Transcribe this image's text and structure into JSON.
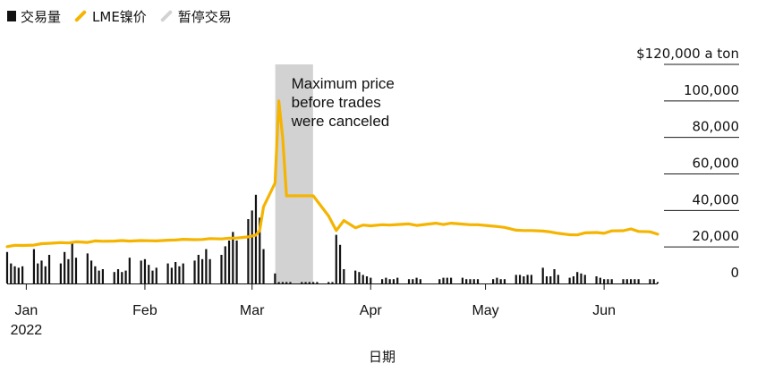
{
  "legend": {
    "volume": "交易量",
    "price": "LME镍价",
    "halt": "暂停交易"
  },
  "colors": {
    "price_line": "#f5b400",
    "volume_bars": "#111111",
    "halt_band": "#d2d2d2",
    "grid": "#1a1a1a"
  },
  "chart_data": {
    "type": "line",
    "x_range": [
      "2021-12-27",
      "2022-06-15"
    ],
    "y_range": [
      0,
      120000
    ],
    "y_ticks": [
      {
        "value": 120000,
        "label": "$120,000 a ton"
      },
      {
        "value": 100000,
        "label": "100,000"
      },
      {
        "value": 80000,
        "label": "80,000"
      },
      {
        "value": 60000,
        "label": "60,000"
      },
      {
        "value": 40000,
        "label": "40,000"
      },
      {
        "value": 20000,
        "label": "20,000"
      },
      {
        "value": 0,
        "label": "0"
      }
    ],
    "x_ticks": [
      {
        "date": "2022-01-01",
        "label": "Jan",
        "sublabel": "2022"
      },
      {
        "date": "2022-02-01",
        "label": "Feb",
        "sublabel": ""
      },
      {
        "date": "2022-03-01",
        "label": "Mar",
        "sublabel": ""
      },
      {
        "date": "2022-04-01",
        "label": "Apr",
        "sublabel": ""
      },
      {
        "date": "2022-05-01",
        "label": "May",
        "sublabel": ""
      },
      {
        "date": "2022-06-01",
        "label": "Jun",
        "sublabel": ""
      }
    ],
    "xlabel": "日期",
    "halt_period": [
      "2022-03-08",
      "2022-03-16"
    ],
    "annotation": {
      "text": [
        "Maximum price",
        "before trades",
        "were canceled"
      ],
      "date": "2022-03-08"
    },
    "series": [
      {
        "name": "LME镍价",
        "points": [
          [
            "2021-12-27",
            20200
          ],
          [
            "2021-12-29",
            20900
          ],
          [
            "2021-12-31",
            20800
          ],
          [
            "2022-01-03",
            21000
          ],
          [
            "2022-01-05",
            21800
          ],
          [
            "2022-01-07",
            22000
          ],
          [
            "2022-01-10",
            22400
          ],
          [
            "2022-01-12",
            22200
          ],
          [
            "2022-01-14",
            22800
          ],
          [
            "2022-01-17",
            22500
          ],
          [
            "2022-01-19",
            23300
          ],
          [
            "2022-01-21",
            23100
          ],
          [
            "2022-01-24",
            23200
          ],
          [
            "2022-01-26",
            23500
          ],
          [
            "2022-01-28",
            23200
          ],
          [
            "2022-01-31",
            23500
          ],
          [
            "2022-02-02",
            23400
          ],
          [
            "2022-02-04",
            23300
          ],
          [
            "2022-02-07",
            23700
          ],
          [
            "2022-02-09",
            23800
          ],
          [
            "2022-02-11",
            24200
          ],
          [
            "2022-02-14",
            24000
          ],
          [
            "2022-02-16",
            24100
          ],
          [
            "2022-02-18",
            24600
          ],
          [
            "2022-02-21",
            24400
          ],
          [
            "2022-02-23",
            24800
          ],
          [
            "2022-02-25",
            24900
          ],
          [
            "2022-02-28",
            25500
          ],
          [
            "2022-03-02",
            26500
          ],
          [
            "2022-03-03",
            29000
          ],
          [
            "2022-03-04",
            42000
          ],
          [
            "2022-03-07",
            55000
          ],
          [
            "2022-03-08",
            100000
          ],
          [
            "2022-03-09",
            80000
          ],
          [
            "2022-03-10",
            48000
          ],
          [
            "2022-03-16",
            48000
          ],
          [
            "2022-03-17",
            48000
          ],
          [
            "2022-03-21",
            37000
          ],
          [
            "2022-03-23",
            29000
          ],
          [
            "2022-03-25",
            34500
          ],
          [
            "2022-03-28",
            30500
          ],
          [
            "2022-03-30",
            32000
          ],
          [
            "2022-04-01",
            31600
          ],
          [
            "2022-04-04",
            32200
          ],
          [
            "2022-04-06",
            32000
          ],
          [
            "2022-04-08",
            32300
          ],
          [
            "2022-04-11",
            32600
          ],
          [
            "2022-04-13",
            31800
          ],
          [
            "2022-04-15",
            32300
          ],
          [
            "2022-04-18",
            33000
          ],
          [
            "2022-04-20",
            32300
          ],
          [
            "2022-04-22",
            33000
          ],
          [
            "2022-04-25",
            32500
          ],
          [
            "2022-04-27",
            32200
          ],
          [
            "2022-04-29",
            32200
          ],
          [
            "2022-05-02",
            31600
          ],
          [
            "2022-05-04",
            31200
          ],
          [
            "2022-05-06",
            30700
          ],
          [
            "2022-05-09",
            29200
          ],
          [
            "2022-05-11",
            29000
          ],
          [
            "2022-05-13",
            29000
          ],
          [
            "2022-05-16",
            28700
          ],
          [
            "2022-05-18",
            28200
          ],
          [
            "2022-05-20",
            27500
          ],
          [
            "2022-05-23",
            26700
          ],
          [
            "2022-05-25",
            26600
          ],
          [
            "2022-05-27",
            27700
          ],
          [
            "2022-05-30",
            27900
          ],
          [
            "2022-06-01",
            27500
          ],
          [
            "2022-06-03",
            28800
          ],
          [
            "2022-06-06",
            28900
          ],
          [
            "2022-06-08",
            29900
          ],
          [
            "2022-06-10",
            28500
          ],
          [
            "2022-06-13",
            28300
          ],
          [
            "2022-06-15",
            27000
          ]
        ]
      },
      {
        "name": "交易量",
        "value_scale": "relative 0-100",
        "points": [
          [
            "2021-12-27",
            22
          ],
          [
            "2021-12-28",
            14
          ],
          [
            "2021-12-29",
            12
          ],
          [
            "2021-12-30",
            11
          ],
          [
            "2021-12-31",
            12
          ],
          [
            "2022-01-03",
            24
          ],
          [
            "2022-01-04",
            14
          ],
          [
            "2022-01-05",
            16
          ],
          [
            "2022-01-06",
            12
          ],
          [
            "2022-01-07",
            20
          ],
          [
            "2022-01-10",
            14
          ],
          [
            "2022-01-11",
            22
          ],
          [
            "2022-01-12",
            17
          ],
          [
            "2022-01-13",
            28
          ],
          [
            "2022-01-14",
            18
          ],
          [
            "2022-01-17",
            21
          ],
          [
            "2022-01-18",
            16
          ],
          [
            "2022-01-19",
            12
          ],
          [
            "2022-01-20",
            9
          ],
          [
            "2022-01-21",
            10
          ],
          [
            "2022-01-24",
            8
          ],
          [
            "2022-01-25",
            10
          ],
          [
            "2022-01-26",
            8
          ],
          [
            "2022-01-27",
            9
          ],
          [
            "2022-01-28",
            18
          ],
          [
            "2022-01-31",
            16
          ],
          [
            "2022-02-01",
            17
          ],
          [
            "2022-02-02",
            13
          ],
          [
            "2022-02-03",
            9
          ],
          [
            "2022-02-04",
            11
          ],
          [
            "2022-02-07",
            14
          ],
          [
            "2022-02-08",
            11
          ],
          [
            "2022-02-09",
            15
          ],
          [
            "2022-02-10",
            12
          ],
          [
            "2022-02-11",
            14
          ],
          [
            "2022-02-14",
            16
          ],
          [
            "2022-02-15",
            20
          ],
          [
            "2022-02-16",
            17
          ],
          [
            "2022-02-17",
            24
          ],
          [
            "2022-02-18",
            17
          ],
          [
            "2022-02-21",
            20
          ],
          [
            "2022-02-22",
            26
          ],
          [
            "2022-02-23",
            30
          ],
          [
            "2022-02-24",
            36
          ],
          [
            "2022-02-25",
            30
          ],
          [
            "2022-02-28",
            45
          ],
          [
            "2022-03-01",
            51
          ],
          [
            "2022-03-02",
            62
          ],
          [
            "2022-03-03",
            46
          ],
          [
            "2022-03-04",
            24
          ],
          [
            "2022-03-07",
            7
          ],
          [
            "2022-03-08",
            1
          ],
          [
            "2022-03-09",
            1
          ],
          [
            "2022-03-10",
            1
          ],
          [
            "2022-03-11",
            1
          ],
          [
            "2022-03-14",
            1
          ],
          [
            "2022-03-15",
            1
          ],
          [
            "2022-03-16",
            1
          ],
          [
            "2022-03-17",
            1
          ],
          [
            "2022-03-18",
            1
          ],
          [
            "2022-03-21",
            1
          ],
          [
            "2022-03-22",
            1
          ],
          [
            "2022-03-23",
            34
          ],
          [
            "2022-03-24",
            27
          ],
          [
            "2022-03-25",
            10
          ],
          [
            "2022-03-28",
            9
          ],
          [
            "2022-03-29",
            8
          ],
          [
            "2022-03-30",
            6
          ],
          [
            "2022-03-31",
            5
          ],
          [
            "2022-04-01",
            4
          ],
          [
            "2022-04-04",
            3
          ],
          [
            "2022-04-05",
            4
          ],
          [
            "2022-04-06",
            3
          ],
          [
            "2022-04-07",
            3
          ],
          [
            "2022-04-08",
            4
          ],
          [
            "2022-04-11",
            3
          ],
          [
            "2022-04-12",
            3
          ],
          [
            "2022-04-13",
            4
          ],
          [
            "2022-04-14",
            3
          ],
          [
            "2022-04-19",
            3
          ],
          [
            "2022-04-20",
            4
          ],
          [
            "2022-04-21",
            4
          ],
          [
            "2022-04-22",
            4
          ],
          [
            "2022-04-25",
            4
          ],
          [
            "2022-04-26",
            3
          ],
          [
            "2022-04-27",
            3
          ],
          [
            "2022-04-28",
            3
          ],
          [
            "2022-04-29",
            3
          ],
          [
            "2022-05-03",
            3
          ],
          [
            "2022-05-04",
            4
          ],
          [
            "2022-05-05",
            3
          ],
          [
            "2022-05-06",
            3
          ],
          [
            "2022-05-09",
            6
          ],
          [
            "2022-05-10",
            6
          ],
          [
            "2022-05-11",
            5
          ],
          [
            "2022-05-12",
            6
          ],
          [
            "2022-05-13",
            6
          ],
          [
            "2022-05-16",
            11
          ],
          [
            "2022-05-17",
            5
          ],
          [
            "2022-05-18",
            5
          ],
          [
            "2022-05-19",
            10
          ],
          [
            "2022-05-20",
            6
          ],
          [
            "2022-05-23",
            4
          ],
          [
            "2022-05-24",
            5
          ],
          [
            "2022-05-25",
            8
          ],
          [
            "2022-05-26",
            7
          ],
          [
            "2022-05-27",
            6
          ],
          [
            "2022-05-30",
            5
          ],
          [
            "2022-05-31",
            4
          ],
          [
            "2022-06-01",
            3
          ],
          [
            "2022-06-02",
            3
          ],
          [
            "2022-06-03",
            3
          ],
          [
            "2022-06-06",
            3
          ],
          [
            "2022-06-07",
            3
          ],
          [
            "2022-06-08",
            3
          ],
          [
            "2022-06-09",
            3
          ],
          [
            "2022-06-10",
            3
          ],
          [
            "2022-06-13",
            3
          ],
          [
            "2022-06-14",
            3
          ],
          [
            "2022-06-15",
            1
          ]
        ]
      }
    ]
  }
}
